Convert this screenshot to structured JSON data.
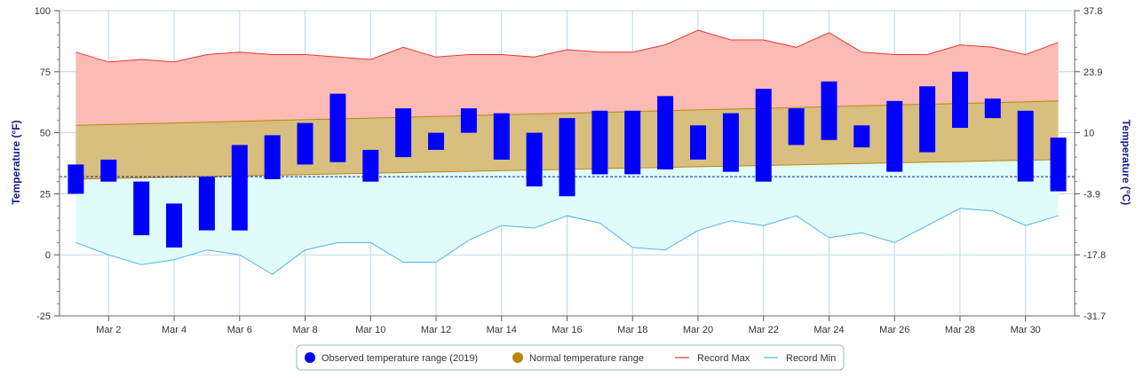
{
  "chart_data": {
    "type": "bar",
    "y_axis_left": {
      "title": "Temperature (°F)",
      "ticks": [
        100,
        75,
        50,
        25,
        0,
        -25
      ],
      "range": [
        -25,
        100
      ]
    },
    "y_axis_right": {
      "title": "Temperature (°C)",
      "ticks": [
        "37.8",
        "23.9",
        "10",
        "-3.9",
        "-17.8",
        "-31.7"
      ]
    },
    "x_labels": [
      "Mar 2",
      "Mar 4",
      "Mar 6",
      "Mar 8",
      "Mar 10",
      "Mar 12",
      "Mar 14",
      "Mar 16",
      "Mar 18",
      "Mar 20",
      "Mar 22",
      "Mar 24",
      "Mar 26",
      "Mar 28",
      "Mar 30"
    ],
    "days": [
      1,
      2,
      3,
      4,
      5,
      6,
      7,
      8,
      9,
      10,
      11,
      12,
      13,
      14,
      15,
      16,
      17,
      18,
      19,
      20,
      21,
      22,
      23,
      24,
      25,
      26,
      27,
      28,
      29,
      30,
      31
    ],
    "observed_low": [
      25,
      30,
      8,
      3,
      10,
      10,
      31,
      37,
      38,
      30,
      40,
      43,
      50,
      39,
      28,
      24,
      33,
      33,
      35,
      39,
      34,
      30,
      45,
      47,
      44,
      34,
      42,
      52,
      56,
      30,
      26
    ],
    "observed_high": [
      37,
      39,
      30,
      21,
      32,
      45,
      49,
      54,
      66,
      43,
      60,
      50,
      60,
      58,
      50,
      56,
      59,
      59,
      65,
      53,
      58,
      68,
      60,
      71,
      53,
      63,
      69,
      75,
      64,
      59,
      48
    ],
    "normal_low_range": [
      31,
      39
    ],
    "normal_high_range": [
      53,
      63
    ],
    "record_max": [
      83,
      79,
      80,
      79,
      82,
      83,
      82,
      82,
      81,
      80,
      85,
      81,
      82,
      82,
      81,
      84,
      83,
      83,
      86,
      92,
      88,
      88,
      85,
      91,
      83,
      82,
      82,
      86,
      85,
      82,
      87
    ],
    "record_min": [
      5,
      0,
      -4,
      -2,
      2,
      0,
      -8,
      2,
      5,
      5,
      -3,
      -3,
      6,
      12,
      11,
      16,
      13,
      3,
      2,
      10,
      14,
      12,
      16,
      7,
      9,
      5,
      12,
      19,
      18,
      12,
      16
    ],
    "freezing_line": 32,
    "grid": true,
    "legend": [
      {
        "label": "Observed temperature range (2019)",
        "marker": "circle",
        "color": "#0000ff"
      },
      {
        "label": "Normal temperature range",
        "marker": "circle",
        "color": "#b8860b"
      },
      {
        "label": "Record Max",
        "marker": "line",
        "color": "#e53935"
      },
      {
        "label": "Record Min",
        "marker": "line",
        "color": "#4fb3f6"
      }
    ],
    "colors": {
      "observed": "#0000ff",
      "normal_fill": "#d8bf80",
      "normal_line": "#b8860b",
      "record_max_line": "#e53935",
      "record_max_fill": "#fbbab4",
      "record_min_line": "#4fb3f6",
      "record_min_fill": "#dffcfb",
      "freezing": "#1a1a8c",
      "grid": "#bcd7e6"
    }
  }
}
